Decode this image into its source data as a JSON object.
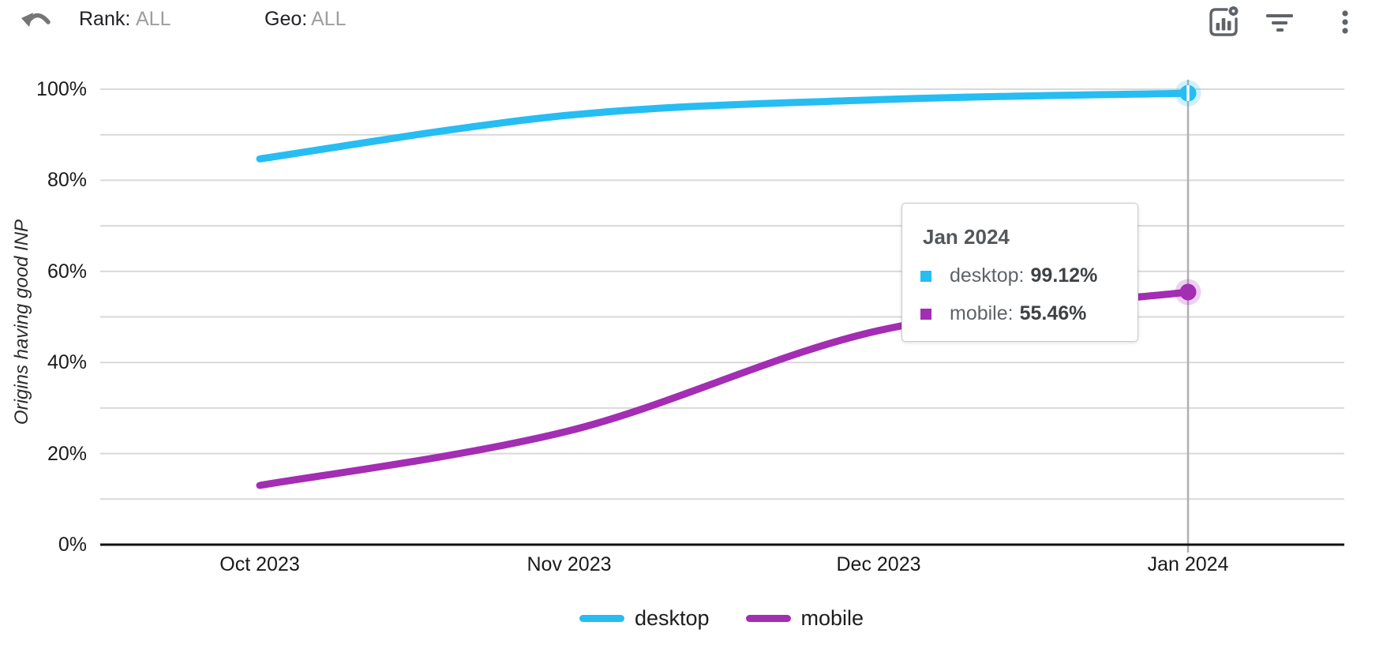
{
  "toolbar": {
    "undo_icon": "undo-arrow",
    "rank": {
      "label": "Rank:",
      "value": "ALL"
    },
    "geo": {
      "label": "Geo:",
      "value": "ALL"
    },
    "action_icons": [
      "chart-settings",
      "filter-list",
      "more-vertical"
    ]
  },
  "chart_data": {
    "type": "line",
    "title": "",
    "xlabel": "",
    "ylabel": "Origins having good INP",
    "categories": [
      "Oct 2023",
      "Nov 2023",
      "Dec 2023",
      "Jan 2024"
    ],
    "series": [
      {
        "name": "desktop",
        "color": "#26bdf2",
        "values": [
          84.7,
          94.3,
          97.7,
          99.12
        ]
      },
      {
        "name": "mobile",
        "color": "#a32db3",
        "values": [
          13.0,
          25.0,
          47.0,
          55.46
        ]
      }
    ],
    "ylim": [
      0,
      100
    ],
    "grid_step": 10,
    "ytick_percents": [
      0,
      20,
      40,
      60,
      80,
      100
    ],
    "ytick_labels": [
      "0%",
      "20%",
      "40%",
      "60%",
      "80%",
      "100%"
    ],
    "grid": true,
    "curve": "smooth",
    "legend_position": "bottom",
    "selected_category": "Jan 2024"
  },
  "tooltip": {
    "title": "Jan 2024",
    "rows": [
      {
        "name": "desktop:",
        "value": "99.12%",
        "color": "#26bdf2"
      },
      {
        "name": "mobile:",
        "value": "55.46%",
        "color": "#a32db3"
      }
    ]
  },
  "legend": {
    "items": [
      {
        "label": "desktop",
        "color": "#26bdf2"
      },
      {
        "label": "mobile",
        "color": "#a32db3"
      }
    ]
  },
  "colors": {
    "gridline": "#d9d9d9",
    "axis": "#111111",
    "crosshair": "#b0b0b0",
    "icon_gray": "#5f6368",
    "undo_gray": "#757575"
  }
}
